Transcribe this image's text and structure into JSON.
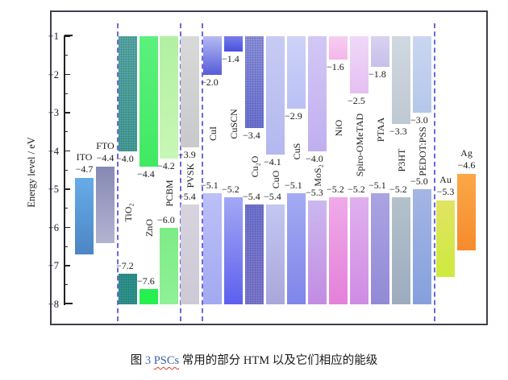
{
  "figure": {
    "caption": {
      "prefix": "图 ",
      "number": "3",
      "space": " ",
      "term": "PSCs",
      "rest": " 常用的部分 HTM 以及它们相应的能级"
    },
    "colors": {
      "separator": "#6b68e0",
      "frame": "#3f3f52",
      "axis": "#222222",
      "caption_number": "#4a6db8",
      "caption_term": "#3c5fa8",
      "squiggle": "#e03c31"
    }
  },
  "chart_data": {
    "type": "bar",
    "title": "",
    "xlabel": "",
    "ylabel": "Energy level / eV",
    "ylim": [
      -8,
      -1
    ],
    "grid": false,
    "yticks": [
      {
        "value": -1,
        "label": "−1"
      },
      {
        "value": -2,
        "label": "−2"
      },
      {
        "value": -3,
        "label": "−3"
      },
      {
        "value": -4,
        "label": "−4"
      },
      {
        "value": -5,
        "label": "−5"
      },
      {
        "value": -6,
        "label": "−6"
      },
      {
        "value": -7,
        "label": "−7"
      },
      {
        "value": -8,
        "label": "−8"
      }
    ],
    "minor_yticks": [
      -1.5,
      -2.5,
      -3.5,
      -4.5,
      -5.5,
      -6.5,
      -7.5
    ],
    "band_top": -1,
    "band_bottom": -8,
    "materials": [
      {
        "name": "ITO",
        "slug": "ito",
        "kind": "electrode",
        "top": -4.7,
        "bottom": -6.7,
        "value_label": "−4.7",
        "colors": [
          "#66ace8",
          "#4d85c5"
        ]
      },
      {
        "name": "FTO",
        "slug": "fto",
        "kind": "electrode",
        "top": -4.4,
        "bottom": -6.4,
        "value_label": "−4.4",
        "colors": [
          "#8589b4",
          "#b2b4d0"
        ]
      },
      {
        "name": "TiO₂",
        "slug": "tio2",
        "kind": "semiconductor",
        "cb": -4.0,
        "vb": -7.2,
        "cb_label": "−4.0",
        "vb_label": "−7.2",
        "upper_colors": [
          "#58aba3",
          "#46a098"
        ],
        "lower_colors": [
          "#2e968b",
          "#2e968b"
        ],
        "textured": true
      },
      {
        "name": "ZnO",
        "slug": "zno",
        "kind": "semiconductor",
        "cb": -4.4,
        "vb": -7.6,
        "cb_label": "−4.4",
        "vb_label": "−7.6",
        "upper_colors": [
          "#5cf07e",
          "#40e962"
        ],
        "lower_colors": [
          "#25f04f",
          "#25f04f"
        ],
        "textured": false
      },
      {
        "name": "PCBM",
        "slug": "pcbm",
        "kind": "semiconductor",
        "cb": -4.2,
        "vb": -6.0,
        "cb_label": "−4.2",
        "vb_label": "−6.0",
        "upper_colors": [
          "#b2f0a2",
          "#c8f7b5"
        ],
        "lower_colors": [
          "#7dec86",
          "#90f096"
        ],
        "textured": false
      },
      {
        "name": "PVSK",
        "slug": "pvsk",
        "kind": "semiconductor",
        "cb": -3.9,
        "vb": -5.4,
        "cb_label": "−3.9",
        "vb_label": "−5.4",
        "upper_colors": [
          "#d9d9d9",
          "#c9c9cc"
        ],
        "lower_colors": [
          "#d8d4de",
          "#cdc9d5"
        ],
        "textured": false
      },
      {
        "name": "CuI",
        "slug": "cui",
        "kind": "semiconductor",
        "cb": -2.0,
        "vb": -5.1,
        "cb_label": "−2.0",
        "vb_label": "−5.1",
        "upper_colors": [
          "#b6baf3",
          "#565cd8"
        ],
        "lower_colors": [
          "#bcc0f6",
          "#a3a9f2"
        ],
        "textured": false
      },
      {
        "name": "CuSCN",
        "slug": "cuscn",
        "kind": "semiconductor",
        "cb": -1.4,
        "vb": -5.2,
        "cb_label": "−1.4",
        "vb_label": "−5.2",
        "upper_colors": [
          "#767de9",
          "#4a50df"
        ],
        "lower_colors": [
          "#a4a8f4",
          "#5c60ee"
        ],
        "textured": false
      },
      {
        "name": "Cu₂O",
        "slug": "cu2o",
        "kind": "semiconductor",
        "cb": -3.4,
        "vb": -5.4,
        "cb_label": "−3.4",
        "vb_label": "−5.4",
        "upper_colors": [
          "#9093e0",
          "#6f74d6"
        ],
        "lower_colors": [
          "#7376d4",
          "#7f78d0"
        ],
        "textured": true
      },
      {
        "name": "CuO",
        "slug": "cuo",
        "kind": "semiconductor",
        "cb": -4.1,
        "vb": -5.4,
        "cb_label": "−4.1",
        "vb_label": "−5.4",
        "upper_colors": [
          "#c7cbf3",
          "#b3b9ef"
        ],
        "lower_colors": [
          "#c3c7f1",
          "#a9a7da"
        ],
        "textured": false
      },
      {
        "name": "CuS",
        "slug": "cus",
        "kind": "semiconductor",
        "cb": -2.9,
        "vb": -5.1,
        "cb_label": "−2.9",
        "vb_label": "−5.1",
        "upper_colors": [
          "#cdd2f8",
          "#bac1f4"
        ],
        "lower_colors": [
          "#a4aaf3",
          "#7e86ea"
        ],
        "textured": false
      },
      {
        "name": "MoS₂",
        "slug": "mos2",
        "kind": "semiconductor",
        "cb": -4.0,
        "vb": -5.3,
        "cb_label": "−4.0",
        "vb_label": "−5.3",
        "upper_colors": [
          "#d3c7f4",
          "#c0aff0"
        ],
        "lower_colors": [
          "#ccb8ef",
          "#c28ce2"
        ],
        "textured": false
      },
      {
        "name": "NiO",
        "slug": "nio",
        "kind": "semiconductor",
        "cb": -1.6,
        "vb": -5.2,
        "cb_label": "−1.6",
        "vb_label": "−5.2",
        "upper_colors": [
          "#f7cef2",
          "#f3b6e9"
        ],
        "lower_colors": [
          "#f0aaea",
          "#e480d8"
        ],
        "textured": false
      },
      {
        "name": "Spiro-OMeTAD",
        "slug": "spiro-ometad",
        "kind": "semiconductor",
        "cb": -2.5,
        "vb": -5.2,
        "cb_label": "−2.5",
        "vb_label": "−5.2",
        "upper_colors": [
          "#f0d8f8",
          "#e5c0f2"
        ],
        "lower_colors": [
          "#e0b0ee",
          "#cf8ce2"
        ],
        "textured": false
      },
      {
        "name": "PTAA",
        "slug": "ptaa",
        "kind": "semiconductor",
        "cb": -1.8,
        "vb": -5.1,
        "cb_label": "−1.8",
        "vb_label": "−5.1",
        "upper_colors": [
          "#d8d2f0",
          "#c7bfea"
        ],
        "lower_colors": [
          "#aaa4e2",
          "#928ad6"
        ],
        "textured": false
      },
      {
        "name": "P3HT",
        "slug": "p3ht",
        "kind": "semiconductor",
        "cb": -3.3,
        "vb": -5.2,
        "cb_label": "−3.3",
        "vb_label": "−5.2",
        "upper_colors": [
          "#d0d8e0",
          "#bfc9d3"
        ],
        "lower_colors": [
          "#b4c1cc",
          "#9cacbf"
        ],
        "textured": false
      },
      {
        "name": "PEDOT:PSS",
        "slug": "pedot-pss",
        "kind": "semiconductor",
        "cb": -3.0,
        "vb": -5.0,
        "cb_label": "−3.0",
        "vb_label": "−5.0",
        "upper_colors": [
          "#cad6f0",
          "#b5c7ea"
        ],
        "lower_colors": [
          "#a4b5e5",
          "#86a0dc"
        ],
        "textured": false
      },
      {
        "name": "Au",
        "slug": "au",
        "kind": "electrode",
        "top": -5.3,
        "bottom": -7.3,
        "value_label": "−5.3",
        "colors": [
          "#e2e363",
          "#cdea3e"
        ]
      },
      {
        "name": "Ag",
        "slug": "ag",
        "kind": "electrode",
        "top": -4.6,
        "bottom": -6.6,
        "value_label": "−4.6",
        "colors": [
          "#faa848",
          "#f68b2c"
        ]
      }
    ],
    "separators_after": [
      "fto",
      "pcbm",
      "pvsk",
      "pedot-pss"
    ]
  }
}
